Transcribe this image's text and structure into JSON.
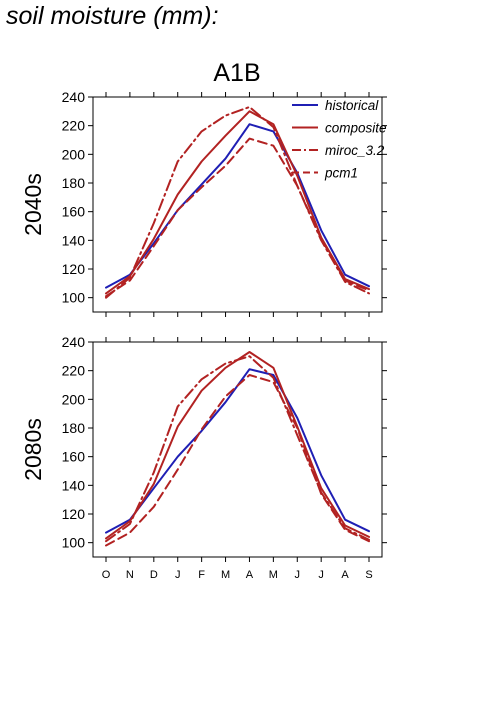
{
  "figure_title": "soil moisture (mm):",
  "column_title": "A1B",
  "colors": {
    "historical": "#1f1fb4",
    "model": "#b22222"
  },
  "chart_data": [
    {
      "type": "line",
      "panel_label": "2040s",
      "categories": [
        "O",
        "N",
        "D",
        "J",
        "F",
        "M",
        "A",
        "M",
        "J",
        "J",
        "A",
        "S"
      ],
      "ylim": [
        90,
        240
      ],
      "yticks": [
        100,
        120,
        140,
        160,
        180,
        200,
        220,
        240
      ],
      "grid": false,
      "legend": "top-right",
      "series": [
        {
          "name": "historical",
          "style": "solid",
          "color": "#1f1fb4",
          "values": [
            107,
            116,
            138,
            161,
            179,
            197,
            221,
            216,
            187,
            147,
            116,
            108
          ]
        },
        {
          "name": "composite",
          "style": "solid",
          "color": "#b22222",
          "values": [
            103,
            115,
            141,
            172,
            195,
            213,
            230,
            221,
            185,
            142,
            113,
            106
          ]
        },
        {
          "name": "miroc_3.2",
          "style": "dashdot",
          "color": "#b22222",
          "values": [
            100,
            114,
            152,
            195,
            216,
            227,
            233,
            219,
            178,
            140,
            111,
            103
          ]
        },
        {
          "name": "pcm1",
          "style": "dashed",
          "color": "#b22222",
          "values": [
            101,
            112,
            136,
            161,
            177,
            192,
            211,
            206,
            178,
            141,
            112,
            105
          ]
        }
      ]
    },
    {
      "type": "line",
      "panel_label": "2080s",
      "categories": [
        "O",
        "N",
        "D",
        "J",
        "F",
        "M",
        "A",
        "M",
        "J",
        "J",
        "A",
        "S"
      ],
      "ylim": [
        90,
        240
      ],
      "yticks": [
        100,
        120,
        140,
        160,
        180,
        200,
        220,
        240
      ],
      "grid": false,
      "legend": "none",
      "series": [
        {
          "name": "historical",
          "style": "solid",
          "color": "#1f1fb4",
          "values": [
            107,
            116,
            138,
            160,
            178,
            198,
            221,
            217,
            187,
            147,
            116,
            108
          ]
        },
        {
          "name": "composite",
          "style": "solid",
          "color": "#b22222",
          "values": [
            103,
            115,
            141,
            181,
            206,
            222,
            233,
            222,
            181,
            138,
            112,
            104
          ]
        },
        {
          "name": "miroc_3.2",
          "style": "dashdot",
          "color": "#b22222",
          "values": [
            101,
            113,
            149,
            195,
            214,
            225,
            230,
            215,
            175,
            135,
            110,
            102
          ]
        },
        {
          "name": "pcm1",
          "style": "dashed",
          "color": "#b22222",
          "values": [
            98,
            107,
            125,
            151,
            179,
            202,
            217,
            212,
            180,
            134,
            109,
            101
          ]
        }
      ]
    }
  ]
}
